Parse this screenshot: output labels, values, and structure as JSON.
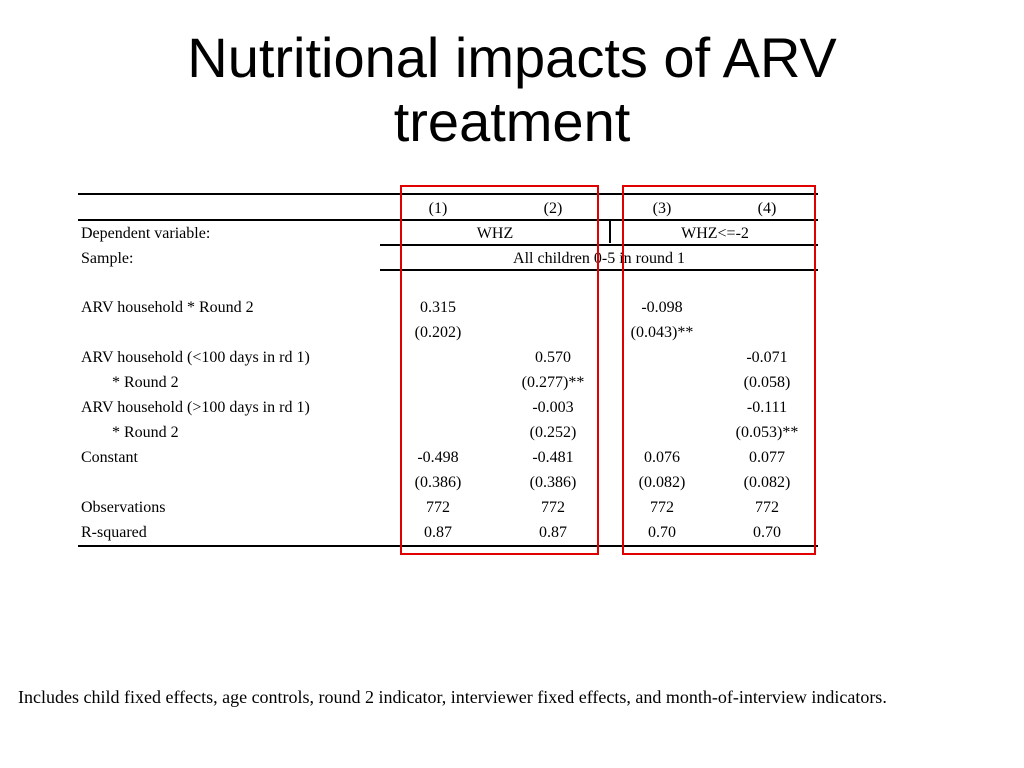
{
  "slide": {
    "title_line1": "Nutritional impacts of ARV",
    "title_line2": "treatment"
  },
  "table": {
    "col_numbers": [
      "(1)",
      "(2)",
      "(3)",
      "(4)"
    ],
    "dependent_label": "Dependent variable:",
    "dependent_left": "WHZ",
    "dependent_right": "WHZ<=-2",
    "sample_label": "Sample:",
    "sample_value": "All children 0-5 in round 1",
    "rows": [
      {
        "label": "ARV household * Round 2",
        "values": [
          "0.315",
          "",
          "-0.098",
          ""
        ]
      },
      {
        "label": "",
        "values": [
          "(0.202)",
          "",
          "(0.043)**",
          ""
        ]
      },
      {
        "label": "ARV household (<100 days in rd 1)",
        "values": [
          "",
          "0.570",
          "",
          "-0.071"
        ]
      },
      {
        "label": "* Round 2",
        "values": [
          "",
          "(0.277)**",
          "",
          "(0.058)"
        ]
      },
      {
        "label": "ARV household (>100 days in rd 1)",
        "values": [
          "",
          "-0.003",
          "",
          "-0.111"
        ]
      },
      {
        "label": "* Round 2",
        "values": [
          "",
          "(0.252)",
          "",
          "(0.053)**"
        ]
      },
      {
        "label": "Constant",
        "values": [
          "-0.498",
          "-0.481",
          "0.076",
          "0.077"
        ]
      },
      {
        "label": "",
        "values": [
          "(0.386)",
          "(0.386)",
          "(0.082)",
          "(0.082)"
        ]
      },
      {
        "label": "Observations",
        "values": [
          "772",
          "772",
          "772",
          "772"
        ]
      },
      {
        "label": "R-squared",
        "values": [
          "0.87",
          "0.87",
          "0.70",
          "0.70"
        ]
      }
    ]
  },
  "highlight_color": "#e00000",
  "footnote": "Includes child fixed effects, age controls, round 2 indicator, interviewer fixed effects, and month-of-interview indicators."
}
